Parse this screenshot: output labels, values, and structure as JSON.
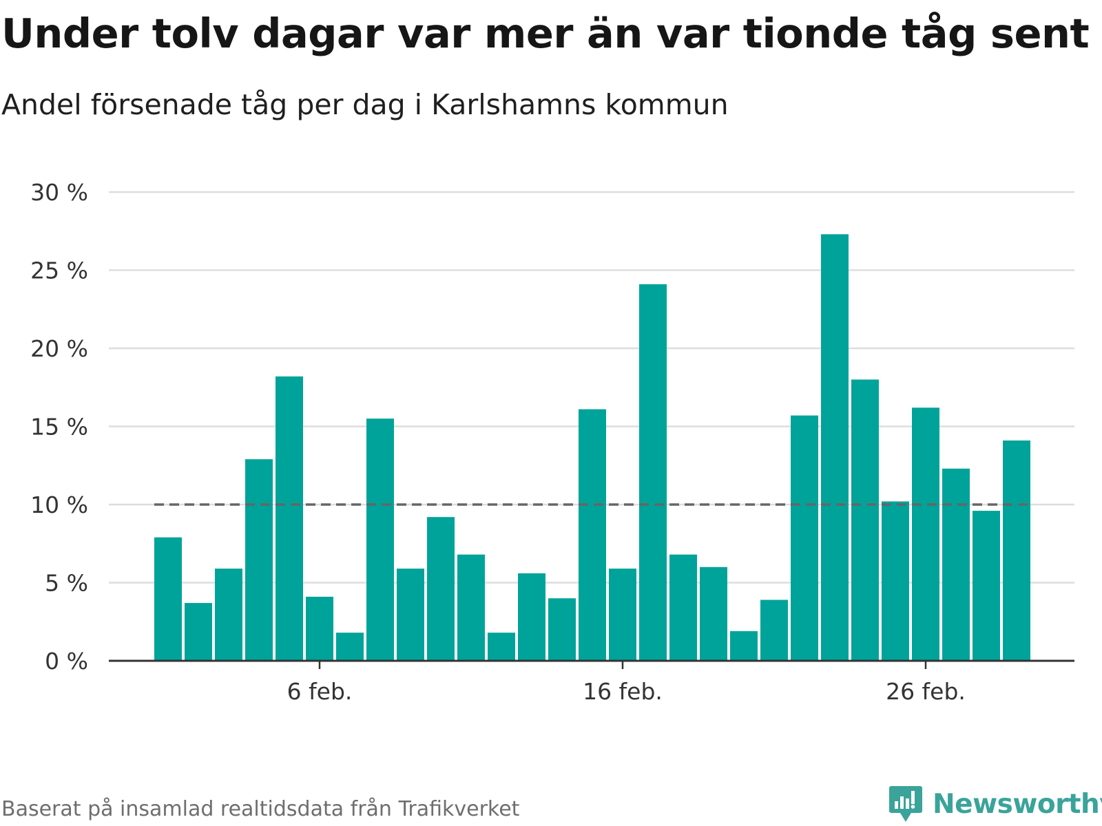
{
  "title": "Under tolv dagar var mer än var tionde tåg sent",
  "subtitle": "Andel försenade tåg per dag i Karlshamns kommun",
  "source": "Baserat på insamlad realtidsdata från Trafikverket",
  "brand": {
    "name": "Newsworthy",
    "icon": "newsworthy-logo-icon",
    "color": "#3aa39a"
  },
  "colors": {
    "bar": "#00a39a",
    "grid": "#dddddd",
    "axis": "#333333",
    "reference_line": "#666666"
  },
  "chart_data": {
    "type": "bar",
    "x": [
      "2024-02-01",
      "2024-02-02",
      "2024-02-03",
      "2024-02-04",
      "2024-02-05",
      "2024-02-06",
      "2024-02-07",
      "2024-02-08",
      "2024-02-09",
      "2024-02-10",
      "2024-02-11",
      "2024-02-12",
      "2024-02-13",
      "2024-02-14",
      "2024-02-15",
      "2024-02-16",
      "2024-02-17",
      "2024-02-18",
      "2024-02-19",
      "2024-02-20",
      "2024-02-21",
      "2024-02-22",
      "2024-02-23",
      "2024-02-24",
      "2024-02-25",
      "2024-02-26",
      "2024-02-27",
      "2024-02-28",
      "2024-02-29"
    ],
    "values": [
      7.9,
      3.7,
      5.9,
      12.9,
      18.2,
      4.1,
      1.8,
      15.5,
      5.9,
      9.2,
      6.8,
      1.8,
      5.6,
      4.0,
      16.1,
      5.9,
      24.1,
      6.8,
      6.0,
      1.9,
      3.9,
      15.7,
      27.3,
      18.0,
      10.2,
      16.2,
      12.3,
      9.6,
      14.1
    ],
    "ylim": [
      0,
      30
    ],
    "yticks": [
      0,
      5,
      10,
      15,
      20,
      25,
      30
    ],
    "ytick_labels": [
      "0 %",
      "5 %",
      "10 %",
      "15 %",
      "20 %",
      "25 %",
      "30 %"
    ],
    "xtick_labels": [
      {
        "x": "2024-02-06",
        "label": "6 feb."
      },
      {
        "x": "2024-02-16",
        "label": "16 feb."
      },
      {
        "x": "2024-02-26",
        "label": "26 feb."
      }
    ],
    "reference_line": {
      "y": 10,
      "style": "dashed"
    },
    "grid": true,
    "legend": false
  }
}
